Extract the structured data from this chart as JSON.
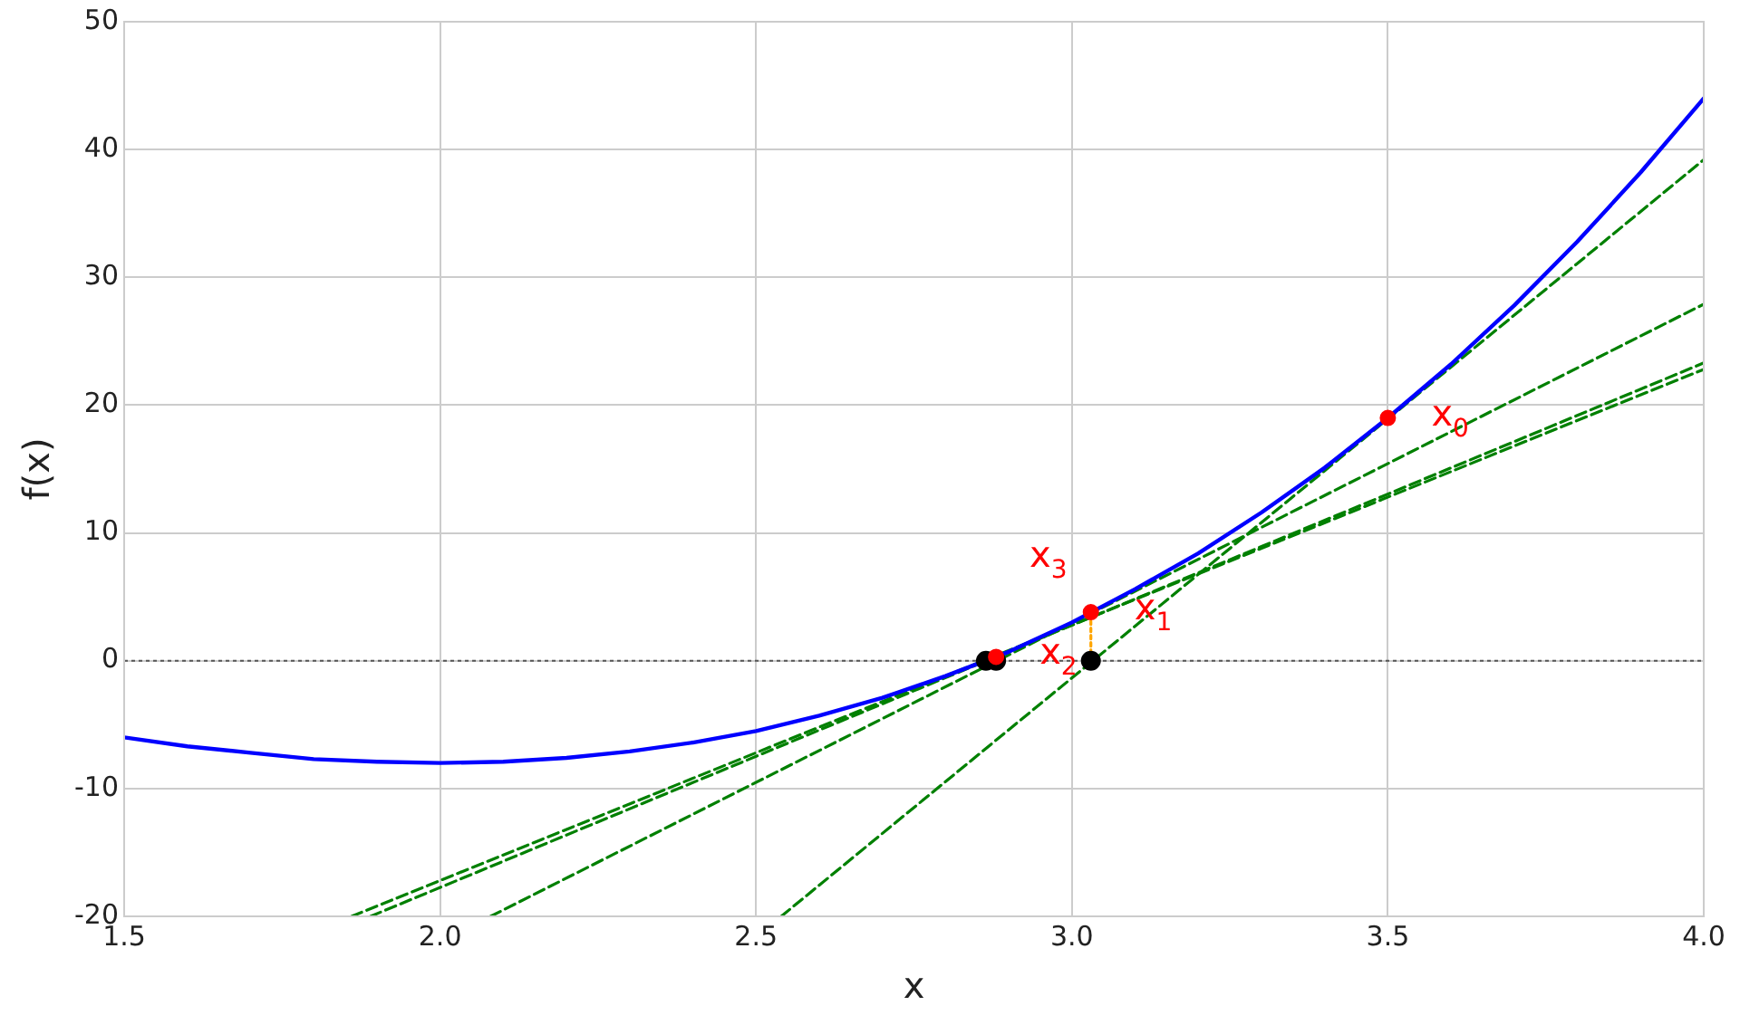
{
  "chart_data": {
    "type": "line",
    "xlabel": "x",
    "ylabel": "f(x)",
    "xlim": [
      1.5,
      4.0
    ],
    "ylim": [
      -20,
      50
    ],
    "xticks": [
      1.5,
      {
        "value": 2,
        "label": "2.0"
      },
      2.5,
      {
        "value": 3,
        "label": "3.0"
      },
      3.5,
      {
        "value": 4,
        "label": "4.0"
      }
    ],
    "yticks": [
      -20,
      -10,
      0,
      10,
      20,
      30,
      40,
      50
    ],
    "grid": true,
    "legend": false,
    "ref_lines": [
      {
        "axis": "y",
        "value": 0,
        "color": "#555555",
        "line_style": "dotted"
      }
    ],
    "series": [
      {
        "color": "#0000ff",
        "line_style": "solid",
        "marker": "none",
        "x": [
          1.5,
          1.6,
          1.7,
          1.8,
          1.9,
          2.0,
          2.1,
          2.2,
          2.3,
          2.4,
          2.5,
          2.6,
          2.7,
          2.8,
          2.9,
          3.0,
          3.1,
          3.2,
          3.3,
          3.4,
          3.5,
          3.6,
          3.7,
          3.8,
          3.9,
          4.0
        ],
        "values": [
          -6,
          -6.7,
          -7.2,
          -7.7,
          -7.9,
          -8,
          -7.9,
          -7.6,
          -7.1,
          -6.4,
          -5.5,
          -4.3,
          -2.9,
          -1.2,
          0.7,
          3,
          5.6,
          8.4,
          11.6,
          15.1,
          19,
          23.2,
          27.8,
          32.8,
          38.2,
          44
        ]
      },
      {
        "type": "line",
        "color": "#008000",
        "line_style": "dashed",
        "marker": "none",
        "x": [
          2.54,
          4.0
        ],
        "values": [
          -20,
          39.2
        ]
      },
      {
        "type": "line",
        "color": "#008000",
        "line_style": "dashed",
        "marker": "none",
        "x": [
          2.08,
          4.0
        ],
        "values": [
          -20,
          27.9
        ]
      },
      {
        "type": "line",
        "color": "#008000",
        "line_style": "dashed",
        "marker": "none",
        "x": [
          1.89,
          4.0
        ],
        "values": [
          -20,
          23.3
        ]
      },
      {
        "type": "line",
        "color": "#008000",
        "line_style": "dashed",
        "marker": "none",
        "x": [
          1.86,
          4.0
        ],
        "values": [
          -20,
          22.8
        ]
      },
      {
        "type": "line",
        "color": "#ffa500",
        "line_style": "dotted",
        "marker": "none",
        "x": [
          3.03,
          3.03
        ],
        "values": [
          0,
          3.8
        ]
      },
      {
        "type": "scatter",
        "color": "#000000",
        "marker": "circle",
        "x": [
          3.03,
          2.88,
          2.864
        ],
        "values": [
          0,
          0,
          0
        ]
      },
      {
        "type": "scatter",
        "color": "#ff0000",
        "marker": "circle",
        "x": [
          3.5,
          3.03,
          2.88
        ],
        "values": [
          19,
          3.8,
          0.3
        ]
      }
    ],
    "annotations": [
      {
        "text": "x$_{0}$",
        "x": 3.5,
        "y": 19
      },
      {
        "text": "x$_{1}$",
        "x": 3.03,
        "y": 3.8
      },
      {
        "text": "x$_{2}$",
        "x": 2.88,
        "y": 0.3
      },
      {
        "text": "x$_{3}$",
        "x": 2.864,
        "y": 0
      }
    ]
  }
}
